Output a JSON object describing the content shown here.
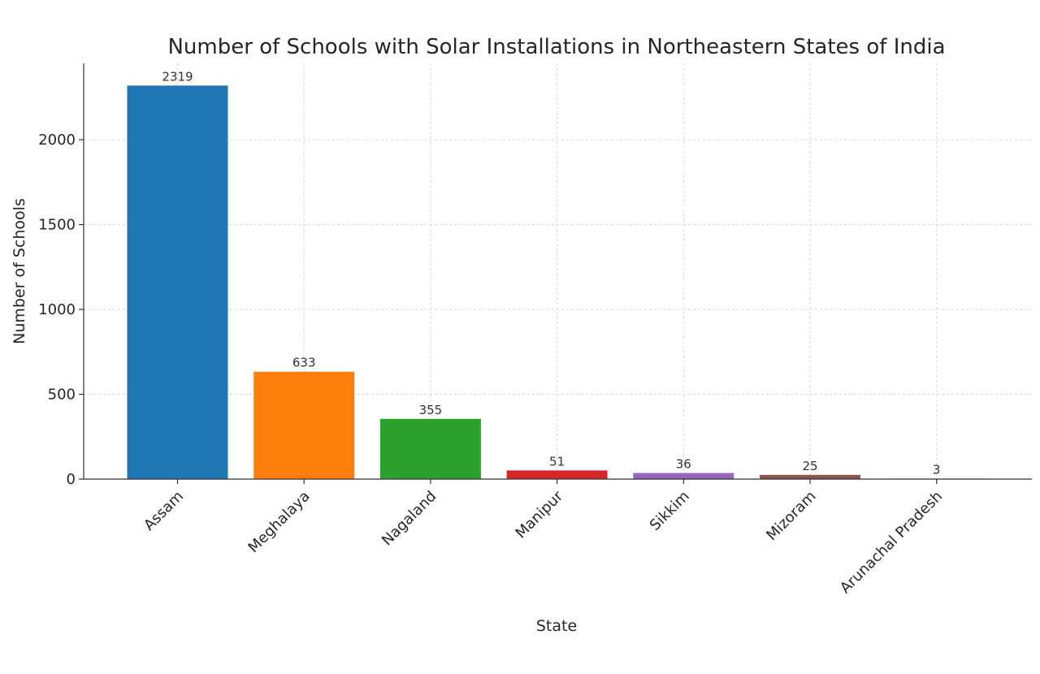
{
  "chart_data": {
    "type": "bar",
    "title": "Number of Schools with Solar Installations in Northeastern States of India",
    "xlabel": "State",
    "ylabel": "Number of Schools",
    "categories": [
      "Assam",
      "Meghalaya",
      "Nagaland",
      "Manipur",
      "Sikkim",
      "Mizoram",
      "Arunachal Pradesh"
    ],
    "values": [
      2319,
      633,
      355,
      51,
      36,
      25,
      3
    ],
    "data_labels": [
      "2319",
      "633",
      "355",
      "51",
      "36",
      "25",
      "3"
    ],
    "colors": [
      "#1f77b4",
      "#ff7f0e",
      "#2ca02c",
      "#d62728",
      "#9467bd",
      "#8c564b",
      "#e377c2"
    ],
    "ylim": [
      0,
      2450
    ],
    "yticks": [
      0,
      500,
      1000,
      1500,
      2000
    ],
    "ytick_labels": [
      "0",
      "500",
      "1000",
      "1500",
      "2000"
    ],
    "grid": true,
    "legend": "none"
  }
}
